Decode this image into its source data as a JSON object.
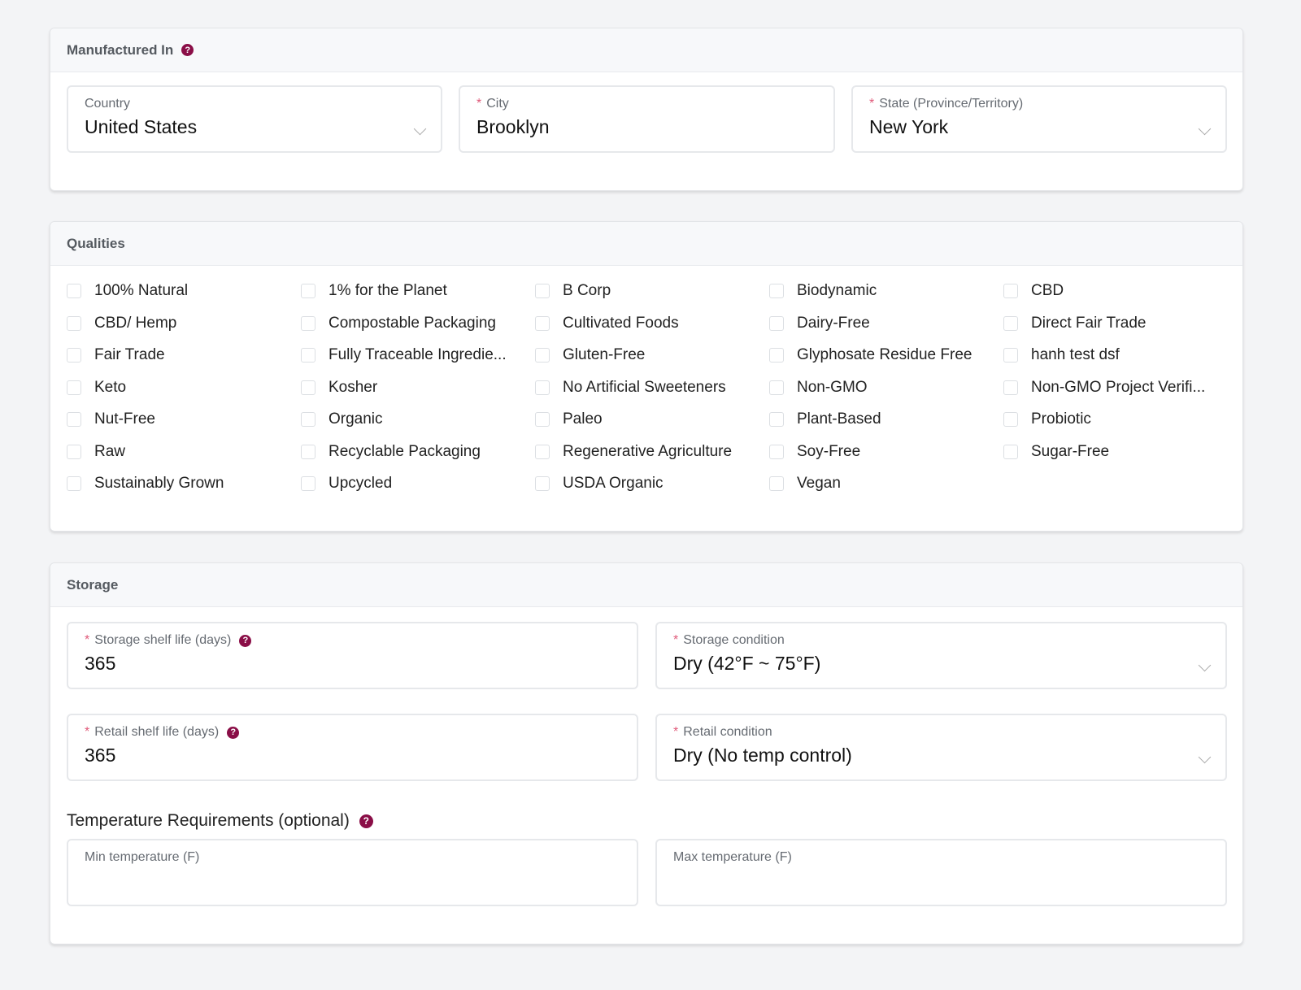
{
  "manufactured": {
    "title": "Manufactured In",
    "country": {
      "label": "Country",
      "value": "United States"
    },
    "city": {
      "label": "City",
      "value": "Brooklyn",
      "required": "*"
    },
    "state": {
      "label": "State (Province/Territory)",
      "value": "New York",
      "required": "*"
    }
  },
  "qualities": {
    "title": "Qualities",
    "items": [
      "100% Natural",
      "1% for the Planet",
      "B Corp",
      "Biodynamic",
      "CBD",
      "CBD/ Hemp",
      "Compostable Packaging",
      "Cultivated Foods",
      "Dairy-Free",
      "Direct Fair Trade",
      "Fair Trade",
      "Fully Traceable Ingredie...",
      "Gluten-Free",
      "Glyphosate Residue Free",
      "hanh test dsf",
      "Keto",
      "Kosher",
      "No Artificial Sweeteners",
      "Non-GMO",
      "Non-GMO Project Verifi...",
      "Nut-Free",
      "Organic",
      "Paleo",
      "Plant-Based",
      "Probiotic",
      "Raw",
      "Recyclable Packaging",
      "Regenerative Agriculture",
      "Soy-Free",
      "Sugar-Free",
      "Sustainably Grown",
      "Upcycled",
      "USDA Organic",
      "Vegan"
    ]
  },
  "storage": {
    "title": "Storage",
    "storage_shelf": {
      "label": "Storage shelf life (days)",
      "value": "365"
    },
    "storage_cond": {
      "label": "Storage condition",
      "value": "Dry (42°F ~ 75°F)"
    },
    "retail_shelf": {
      "label": "Retail shelf life (days)",
      "value": "365"
    },
    "retail_cond": {
      "label": "Retail condition",
      "value": "Dry (No temp control)"
    },
    "temp_title": "Temperature Requirements (optional)",
    "min_temp": {
      "label": "Min temperature (F)",
      "value": ""
    },
    "max_temp": {
      "label": "Max temperature (F)",
      "value": ""
    },
    "required": "*"
  },
  "help_glyph": "?"
}
